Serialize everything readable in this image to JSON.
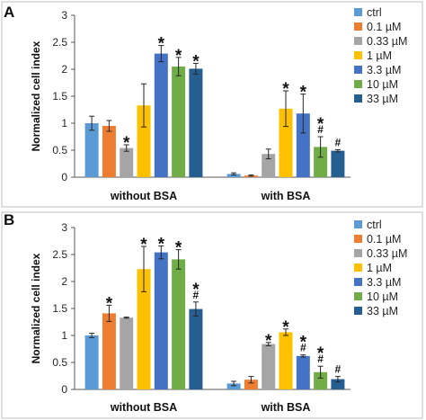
{
  "colors": {
    "series": [
      "#5b9bd5",
      "#ed7d31",
      "#a5a5a5",
      "#ffc000",
      "#4472c4",
      "#70ad47",
      "#255e91"
    ],
    "axis": "#595959",
    "gridline": "none",
    "error_bar": "#262626"
  },
  "chart_data": [
    {
      "panel": "A",
      "type": "bar",
      "categories": [
        "without BSA",
        "with BSA"
      ],
      "ylabel": "Normalized cell index",
      "ylim": [
        0,
        3
      ],
      "yticks": [
        "0",
        "0.5",
        "1",
        "1.5",
        "2",
        "2.5",
        "3"
      ],
      "legend_position": "right",
      "grid": false,
      "series": [
        {
          "name": "ctrl",
          "values": [
            1.0,
            0.06
          ],
          "errors": [
            0.13,
            0.02
          ],
          "marks": [
            "",
            ""
          ]
        },
        {
          "name": "0.1 µM",
          "values": [
            0.95,
            0.03
          ],
          "errors": [
            0.1,
            0.01
          ],
          "marks": [
            "",
            ""
          ]
        },
        {
          "name": "0.33 µM",
          "values": [
            0.54,
            0.43
          ],
          "errors": [
            0.06,
            0.09
          ],
          "marks": [
            "*",
            ""
          ]
        },
        {
          "name": "1 µM",
          "values": [
            1.33,
            1.27
          ],
          "errors": [
            0.4,
            0.33
          ],
          "marks": [
            "",
            "*"
          ]
        },
        {
          "name": "3.3 µM",
          "values": [
            2.29,
            1.18
          ],
          "errors": [
            0.15,
            0.36
          ],
          "marks": [
            "*",
            "*"
          ]
        },
        {
          "name": "10 µM",
          "values": [
            2.05,
            0.56
          ],
          "errors": [
            0.17,
            0.19
          ],
          "marks": [
            "*",
            "*\n#"
          ]
        },
        {
          "name": "33 µM",
          "values": [
            2.01,
            0.49
          ],
          "errors": [
            0.1,
            0.02
          ],
          "marks": [
            "*",
            "#"
          ]
        }
      ]
    },
    {
      "panel": "B",
      "type": "bar",
      "categories": [
        "without BSA",
        "with BSA"
      ],
      "ylabel": "Normalized cell index",
      "ylim": [
        0,
        3
      ],
      "yticks": [
        "0",
        "0.5",
        "1",
        "1.5",
        "2",
        "2.5",
        "3"
      ],
      "legend_position": "right",
      "grid": false,
      "series": [
        {
          "name": "ctrl",
          "values": [
            1.0,
            0.11
          ],
          "errors": [
            0.04,
            0.04
          ],
          "marks": [
            "",
            ""
          ]
        },
        {
          "name": "0.1 µM",
          "values": [
            1.41,
            0.18
          ],
          "errors": [
            0.15,
            0.06
          ],
          "marks": [
            "*",
            ""
          ]
        },
        {
          "name": "0.33 µM",
          "values": [
            1.33,
            0.84
          ],
          "errors": [
            0.01,
            0.03
          ],
          "marks": [
            "",
            "*"
          ]
        },
        {
          "name": "1 µM",
          "values": [
            2.23,
            1.06
          ],
          "errors": [
            0.42,
            0.06
          ],
          "marks": [
            "*",
            "*"
          ]
        },
        {
          "name": "3.3 µM",
          "values": [
            2.54,
            0.62
          ],
          "errors": [
            0.12,
            0.02
          ],
          "marks": [
            "*",
            "*\n#"
          ]
        },
        {
          "name": "10 µM",
          "values": [
            2.41,
            0.32
          ],
          "errors": [
            0.18,
            0.11
          ],
          "marks": [
            "*",
            "*\n#"
          ]
        },
        {
          "name": "33 µM",
          "values": [
            1.49,
            0.19
          ],
          "errors": [
            0.13,
            0.05
          ],
          "marks": [
            "*\n#",
            "#"
          ]
        }
      ]
    }
  ]
}
